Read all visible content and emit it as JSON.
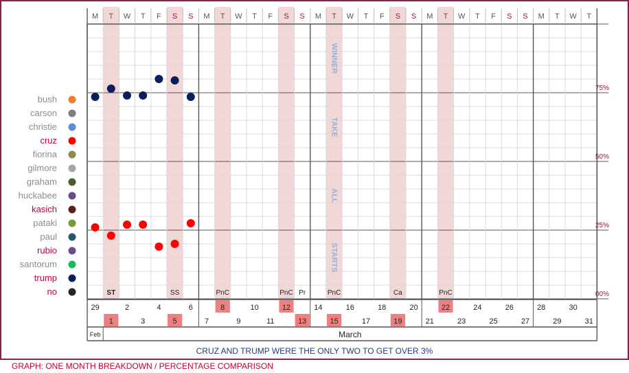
{
  "chart_data": {
    "type": "scatter",
    "x_unit": "day",
    "ylim": [
      0,
      100
    ],
    "grid": true,
    "legend_position": "left",
    "weekday_header": [
      "M",
      "T",
      "W",
      "T",
      "F",
      "S",
      "S",
      "M",
      "T",
      "W",
      "T",
      "F",
      "S",
      "S",
      "M",
      "T",
      "W",
      "T",
      "F",
      "S",
      "S",
      "M",
      "T",
      "W",
      "T",
      "F",
      "S",
      "S",
      "M",
      "T",
      "W",
      "T"
    ],
    "weekday_is_weekend": [
      false,
      false,
      false,
      false,
      false,
      true,
      true,
      false,
      false,
      false,
      false,
      false,
      true,
      true,
      false,
      false,
      false,
      false,
      false,
      true,
      true,
      false,
      false,
      false,
      false,
      false,
      true,
      true,
      false,
      false,
      false,
      false
    ],
    "y_ticks": [
      {
        "value": 75,
        "label": "75%"
      },
      {
        "value": 50,
        "label": "50%"
      },
      {
        "value": 25,
        "label": "25%"
      },
      {
        "value": 0,
        "label": "00%"
      }
    ],
    "vertical_words": [
      {
        "text": "WINNER",
        "y": 87.5
      },
      {
        "text": "TAKE",
        "y": 62.5
      },
      {
        "text": "ALL",
        "y": 37.5
      },
      {
        "text": "STARTS",
        "y": 15
      }
    ],
    "shaded_days": [
      1,
      5,
      8,
      12,
      15,
      19,
      22
    ],
    "event_labels": [
      {
        "day": 1,
        "text": "ST",
        "bold": true
      },
      {
        "day": 5,
        "text": "SS",
        "bold": false
      },
      {
        "day": 8,
        "text": "PnC",
        "bold": false
      },
      {
        "day": 12,
        "text": "PnC",
        "bold": false
      },
      {
        "day": 13,
        "text": "Pr",
        "bold": false
      },
      {
        "day": 15,
        "text": "PnC",
        "bold": false
      },
      {
        "day": 19,
        "text": "Ca",
        "bold": false
      },
      {
        "day": 22,
        "text": "PnC",
        "bold": false
      }
    ],
    "date_row_top": [
      "29",
      "",
      "2",
      "",
      "4",
      "",
      "6",
      "",
      "8",
      "",
      "10",
      "",
      "12",
      "",
      "14",
      "",
      "16",
      "",
      "18",
      "",
      "20",
      "",
      "22",
      "",
      "24",
      "",
      "26",
      "",
      "28",
      "",
      "30",
      ""
    ],
    "date_row_bottom": [
      "",
      "1",
      "",
      "3",
      "",
      "5",
      "",
      "7",
      "",
      "9",
      "",
      "11",
      "",
      "13",
      "",
      "15",
      "",
      "17",
      "",
      "19",
      "",
      "21",
      "",
      "23",
      "",
      "25",
      "",
      "27",
      "",
      "29",
      "",
      "31"
    ],
    "highlighted_dates": [
      "1",
      "5",
      "8",
      "12",
      "13",
      "15",
      "19",
      "22"
    ],
    "month_labels": {
      "feb": "Feb",
      "march": "March"
    },
    "series": [
      {
        "name": "bush",
        "color": "#ed7d31",
        "name_color": "#8c8c8c",
        "points": []
      },
      {
        "name": "carson",
        "color": "#7f7f7f",
        "name_color": "#8c8c8c",
        "points": []
      },
      {
        "name": "christie",
        "color": "#5b8fd1",
        "name_color": "#8c8c8c",
        "points": []
      },
      {
        "name": "cruz",
        "color": "#ff0000",
        "name_color": "#c0004a",
        "points": [
          {
            "day": 0,
            "value": 26
          },
          {
            "day": 1,
            "value": 23
          },
          {
            "day": 2,
            "value": 27
          },
          {
            "day": 3,
            "value": 27
          },
          {
            "day": 4,
            "value": 19
          },
          {
            "day": 5,
            "value": 20
          },
          {
            "day": 6,
            "value": 27.5
          }
        ]
      },
      {
        "name": "fiorina",
        "color": "#8f8a55",
        "name_color": "#8c8c8c",
        "points": []
      },
      {
        "name": "gilmore",
        "color": "#a6a6a6",
        "name_color": "#8c8c8c",
        "points": []
      },
      {
        "name": "graham",
        "color": "#4d5d2a",
        "name_color": "#8c8c8c",
        "points": []
      },
      {
        "name": "huckabee",
        "color": "#6b4a8c",
        "name_color": "#8c8c8c",
        "points": []
      },
      {
        "name": "kasich",
        "color": "#5e1f1f",
        "name_color": "#c0004a",
        "points": []
      },
      {
        "name": "pataki",
        "color": "#7a9a3c",
        "name_color": "#8c8c8c",
        "points": []
      },
      {
        "name": "paul",
        "color": "#215b6b",
        "name_color": "#8c8c8c",
        "points": []
      },
      {
        "name": "rubio",
        "color": "#6d4c8f",
        "name_color": "#c0004a",
        "points": []
      },
      {
        "name": "santorum",
        "color": "#1db954",
        "name_color": "#8c8c8c",
        "points": []
      },
      {
        "name": "trump",
        "color": "#0b1f5c",
        "name_color": "#c0004a",
        "points": [
          {
            "day": 0,
            "value": 73.5
          },
          {
            "day": 1,
            "value": 76.5
          },
          {
            "day": 2,
            "value": 74
          },
          {
            "day": 3,
            "value": 74
          },
          {
            "day": 4,
            "value": 80
          },
          {
            "day": 5,
            "value": 79.5
          },
          {
            "day": 6,
            "value": 73.5
          }
        ]
      },
      {
        "name": "no",
        "color": "#262626",
        "name_color": "#c0004a",
        "points": []
      }
    ]
  },
  "caption": "CRUZ AND TRUMP WERE THE ONLY TWO TO GET OVER 3%",
  "footer": "GRAPH: ONE MONTH BREAKDOWN / PERCENTAGE COMPARISON"
}
